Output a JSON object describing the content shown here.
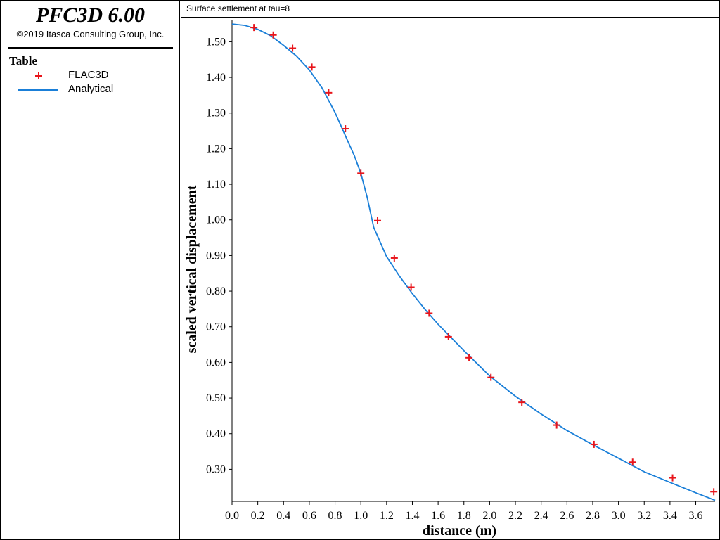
{
  "app": {
    "title": "PFC3D 6.00",
    "copyright": "©2019 Itasca Consulting Group, Inc."
  },
  "legend": {
    "title": "Table",
    "items": [
      {
        "label": "FLAC3D",
        "marker": "plus",
        "color": "#e8151b"
      },
      {
        "label": "Analytical",
        "marker": "line",
        "color": "#1a7fd8"
      }
    ]
  },
  "chart_data": {
    "type": "scatter",
    "title": "Surface settlement at tau=8",
    "xlabel": "distance (m)",
    "ylabel": "scaled vertical displacement",
    "xlim": [
      0.0,
      3.75
    ],
    "ylim": [
      0.21,
      1.56
    ],
    "xticks": [
      "0.0",
      "0.2",
      "0.4",
      "0.6",
      "0.8",
      "1.0",
      "1.2",
      "1.4",
      "1.6",
      "1.8",
      "2.0",
      "2.2",
      "2.4",
      "2.6",
      "2.8",
      "3.0",
      "3.2",
      "3.4",
      "3.6"
    ],
    "yticks": [
      "0.30",
      "0.40",
      "0.50",
      "0.60",
      "0.70",
      "0.80",
      "0.90",
      "1.00",
      "1.10",
      "1.20",
      "1.30",
      "1.40",
      "1.50"
    ],
    "grid": false,
    "legend_position": "left-sidebar",
    "series": [
      {
        "name": "FLAC3D",
        "marker": "plus",
        "color": "#e8151b",
        "x": [
          0.17,
          0.32,
          0.47,
          0.62,
          0.75,
          0.88,
          1.0,
          1.13,
          1.26,
          1.39,
          1.53,
          1.68,
          1.84,
          2.01,
          2.25,
          2.52,
          2.81,
          3.11,
          3.42,
          3.74
        ],
        "y": [
          1.54,
          1.519,
          1.482,
          1.429,
          1.357,
          1.256,
          1.131,
          0.998,
          0.893,
          0.811,
          0.738,
          0.672,
          0.613,
          0.558,
          0.488,
          0.424,
          0.37,
          0.32,
          0.276,
          0.237
        ]
      },
      {
        "name": "Analytical",
        "marker": "line",
        "color": "#1a7fd8",
        "x": [
          0.0,
          0.1,
          0.2,
          0.3,
          0.4,
          0.5,
          0.6,
          0.7,
          0.8,
          0.9,
          0.95,
          1.0,
          1.05,
          1.1,
          1.2,
          1.3,
          1.4,
          1.5,
          1.6,
          1.8,
          2.0,
          2.2,
          2.4,
          2.6,
          2.8,
          3.0,
          3.2,
          3.4,
          3.6,
          3.75
        ],
        "y": [
          1.55,
          1.546,
          1.535,
          1.517,
          1.49,
          1.46,
          1.421,
          1.37,
          1.301,
          1.22,
          1.18,
          1.131,
          1.062,
          0.979,
          0.897,
          0.842,
          0.793,
          0.748,
          0.707,
          0.633,
          0.562,
          0.505,
          0.455,
          0.409,
          0.369,
          0.331,
          0.293,
          0.263,
          0.234,
          0.213
        ]
      }
    ]
  }
}
